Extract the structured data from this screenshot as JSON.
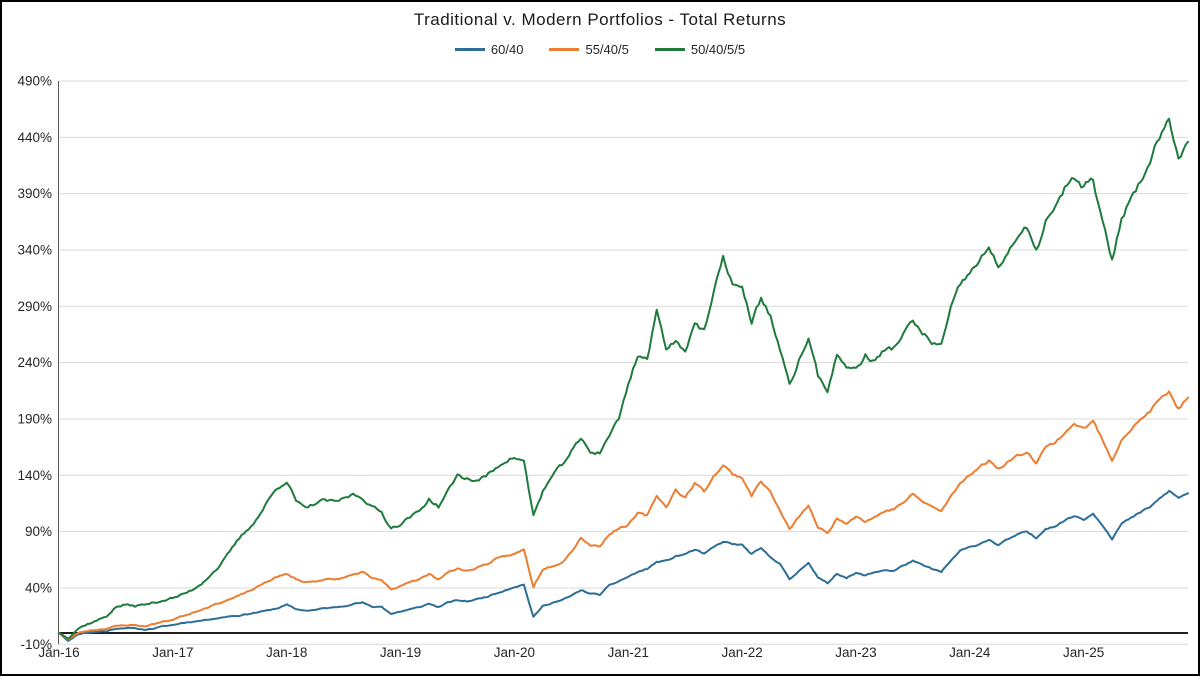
{
  "chart_data": {
    "type": "line",
    "title": "Traditional  v. Modern  Portfolios  - Total  Returns",
    "x_tick_labels": [
      "Jan-16",
      "Jan-17",
      "Jan-18",
      "Jan-19",
      "Jan-20",
      "Jan-21",
      "Jan-22",
      "Jan-23",
      "Jan-24",
      "Jan-25"
    ],
    "y_tick_labels": [
      "-10%",
      "40%",
      "90%",
      "140%",
      "190%",
      "240%",
      "290%",
      "340%",
      "390%",
      "440%",
      "490%"
    ],
    "ylim": [
      -10,
      490
    ],
    "x_start": "Jan-2016",
    "x_interval": "monthly",
    "grid": "horizontal",
    "legend_position": "top",
    "axis_color": "#595959",
    "gridline_color": "#d9d9d9",
    "zero_line_color": "#000000",
    "series": [
      {
        "name": "60/40",
        "color": "#2d6e96",
        "values": [
          0,
          -7,
          -1,
          0.5,
          1,
          1.5,
          4,
          4.5,
          4,
          3,
          4,
          6,
          7,
          9,
          10,
          11,
          12.5,
          13.5,
          15,
          15.5,
          17,
          18.5,
          20,
          22,
          25,
          21,
          20,
          20.5,
          22,
          22.5,
          24,
          26,
          27,
          23,
          23.5,
          17,
          19,
          21,
          23,
          26,
          23,
          27,
          29,
          28,
          30,
          32,
          35,
          38,
          41,
          43,
          14,
          24,
          27,
          29,
          33,
          38,
          35,
          34,
          42,
          46,
          50,
          54,
          57,
          63,
          64,
          68,
          70,
          74,
          70,
          76,
          81,
          79,
          78,
          70,
          75,
          67,
          62,
          47,
          55,
          63,
          49,
          44,
          53,
          49,
          53,
          51,
          54,
          56,
          55,
          60,
          64,
          60,
          57,
          54,
          64,
          73,
          76,
          79,
          83,
          78,
          83,
          87,
          90,
          84,
          93,
          95,
          100,
          104,
          101,
          106,
          96,
          84,
          97,
          102,
          107,
          112,
          119,
          126,
          120,
          124
        ]
      },
      {
        "name": "55/40/5",
        "color": "#ed7d31",
        "values": [
          0,
          -6,
          0,
          2,
          3,
          4,
          6,
          7,
          7,
          6,
          8,
          10,
          12,
          15,
          18,
          21,
          24,
          27,
          30,
          33,
          37,
          41,
          46,
          50,
          52,
          48,
          45,
          46,
          48,
          47,
          49,
          52,
          54,
          48,
          47,
          38,
          42,
          46,
          48,
          52,
          48,
          54,
          57,
          55,
          58,
          61,
          65,
          68,
          70,
          74,
          41,
          57,
          60,
          63,
          72,
          85,
          78,
          77,
          88,
          93,
          96,
          106,
          104,
          122,
          112,
          127,
          120,
          133,
          126,
          139,
          149,
          141,
          138,
          122,
          135,
          125,
          108,
          92,
          103,
          113,
          94,
          88,
          102,
          98,
          104,
          99,
          103,
          108,
          110,
          116,
          123,
          117,
          112,
          108,
          121,
          133,
          141,
          147,
          153,
          146,
          152,
          157,
          161,
          152,
          165,
          169,
          178,
          186,
          181,
          188,
          171,
          154,
          172,
          181,
          189,
          197,
          207,
          214,
          199,
          209
        ]
      },
      {
        "name": "50/40/5/5",
        "color": "#1e7b3c",
        "values": [
          0,
          -4,
          4,
          8,
          11,
          15,
          23,
          25,
          24,
          25,
          27,
          29,
          31,
          34,
          38,
          44,
          52,
          60,
          72,
          84,
          93,
          103,
          117,
          129,
          135,
          117,
          110,
          115,
          118,
          116,
          119,
          123,
          120,
          112,
          107,
          93,
          97,
          103,
          108,
          119,
          112,
          126,
          140,
          137,
          135,
          139,
          146,
          153,
          156,
          152,
          104,
          126,
          139,
          149,
          161,
          172,
          161,
          160,
          176,
          190,
          221,
          247,
          243,
          285,
          254,
          259,
          251,
          276,
          267,
          301,
          332,
          311,
          305,
          276,
          298,
          281,
          251,
          219,
          242,
          262,
          228,
          216,
          246,
          237,
          234,
          246,
          241,
          251,
          253,
          266,
          276,
          266,
          258,
          255,
          287,
          309,
          319,
          331,
          341,
          324,
          339,
          351,
          359,
          337,
          366,
          376,
          394,
          403,
          396,
          402,
          363,
          330,
          369,
          386,
          401,
          421,
          441,
          456,
          425,
          436
        ]
      }
    ]
  }
}
